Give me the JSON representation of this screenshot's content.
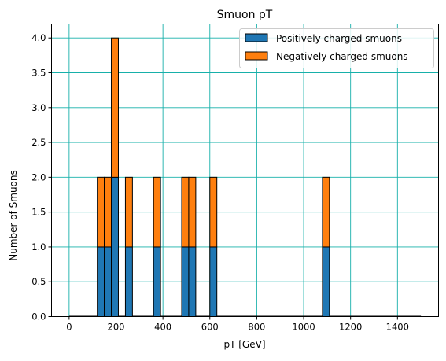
{
  "chart_data": {
    "type": "bar",
    "title": "Smuon pT",
    "xlabel": "pT [GeV]",
    "ylabel": "Number of Smuons",
    "xlim": [
      -75,
      1575
    ],
    "ylim": [
      0,
      4.2
    ],
    "bin_width": 30,
    "x_ticks": [
      0,
      200,
      400,
      600,
      800,
      1000,
      1200,
      1400
    ],
    "x_tick_labels": [
      "0",
      "200",
      "400",
      "600",
      "800",
      "1000",
      "1200",
      "1400"
    ],
    "y_ticks": [
      0,
      0.5,
      1,
      1.5,
      2,
      2.5,
      3,
      3.5,
      4
    ],
    "y_tick_labels": [
      "0.0",
      "0.5",
      "1.0",
      "1.5",
      "2.0",
      "2.5",
      "3.0",
      "3.5",
      "4.0"
    ],
    "stacked": true,
    "grid": true,
    "legend_position": "top-right",
    "bin_starts": [
      120,
      150,
      180,
      240,
      360,
      480,
      510,
      600,
      1080
    ],
    "series": [
      {
        "name": "Positively charged smuons",
        "color": "#1f77b4",
        "values": [
          1,
          1,
          2,
          1,
          1,
          1,
          1,
          1,
          1
        ]
      },
      {
        "name": "Negatively charged smuons",
        "color": "#ff7f0e",
        "values": [
          1,
          1,
          2,
          1,
          1,
          1,
          1,
          1,
          1
        ]
      }
    ]
  }
}
